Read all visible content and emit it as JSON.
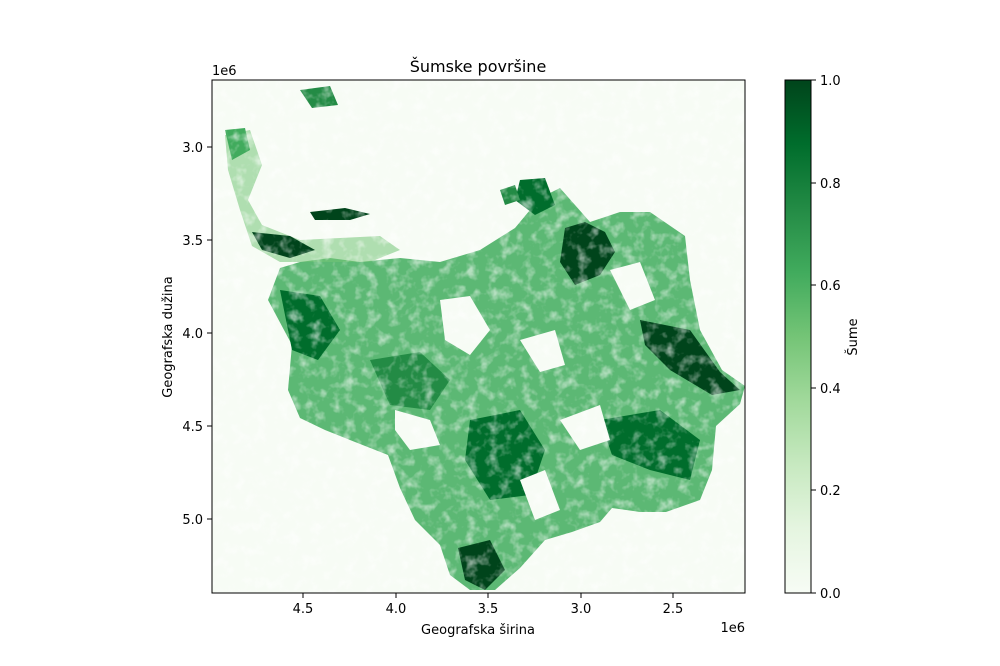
{
  "chart_data": {
    "type": "heatmap",
    "title": "Šumske površine",
    "xlabel": "Geografska širina",
    "ylabel": "Geografska dužina",
    "x_offset_label": "1e6",
    "y_offset_label": "1e6",
    "xlim": [
      4.95,
      2.18
    ],
    "ylim": [
      5.4,
      2.65
    ],
    "x_ticks": [
      4.5,
      4.0,
      3.5,
      3.0,
      2.5
    ],
    "x_tick_labels": [
      "4.5",
      "4.0",
      "3.5",
      "3.0",
      "2.5"
    ],
    "y_ticks": [
      3.0,
      3.5,
      4.0,
      4.5,
      5.0
    ],
    "y_tick_labels": [
      "3.0",
      "3.5",
      "4.0",
      "4.5",
      "5.0"
    ],
    "colorbar": {
      "label": "Šume",
      "range": [
        0,
        1
      ],
      "ticks": [
        0.0,
        0.2,
        0.4,
        0.6,
        0.8,
        1.0
      ],
      "tick_labels": [
        "0.0",
        "0.2",
        "0.4",
        "0.6",
        "0.8",
        "1.0"
      ],
      "colormap": "Greens",
      "color_low": "#f7fcf5",
      "color_high": "#00441b"
    },
    "grid": false
  }
}
